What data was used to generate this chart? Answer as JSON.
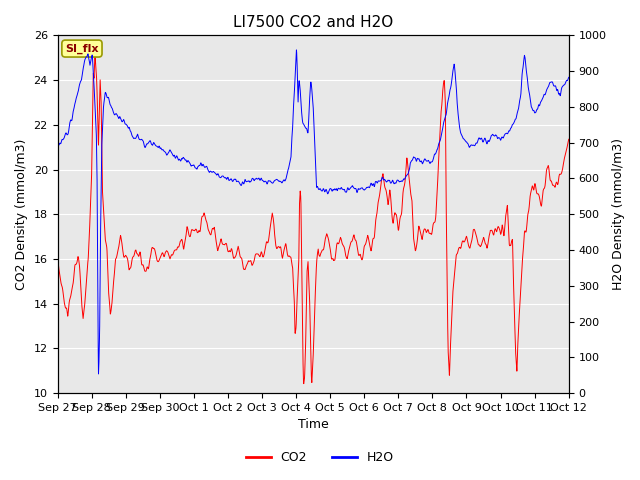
{
  "title": "LI7500 CO2 and H2O",
  "xlabel": "Time",
  "ylabel_left": "CO2 Density (mmol/m3)",
  "ylabel_right": "H2O Density (mmol/m3)",
  "co2_color": "#FF0000",
  "h2o_color": "#0000FF",
  "co2_label": "CO2",
  "h2o_label": "H2O",
  "ylim_left": [
    10,
    26
  ],
  "ylim_right": [
    0,
    1000
  ],
  "yticks_left": [
    10,
    12,
    14,
    16,
    18,
    20,
    22,
    24,
    26
  ],
  "yticks_right": [
    0,
    100,
    200,
    300,
    400,
    500,
    600,
    700,
    800,
    900,
    1000
  ],
  "background_color": "#E8E8E8",
  "figure_bg": "#FFFFFF",
  "annotation_text": "SI_flx",
  "annotation_bg": "#FFFF99",
  "annotation_border": "#999900",
  "grid_color": "#FFFFFF",
  "title_fontsize": 11,
  "axis_label_fontsize": 9,
  "tick_label_fontsize": 8,
  "legend_fontsize": 9,
  "xtick_labels": [
    "Sep 27",
    "Sep 28",
    "Sep 29",
    "Sep 30",
    "Oct 1",
    "Oct 2",
    "Oct 3",
    "Oct 4",
    "Oct 5",
    "Oct 6",
    "Oct 7",
    "Oct 8",
    "Oct 9",
    "Oct 10",
    "Oct 11",
    "Oct 12"
  ],
  "num_points_per_day": 144
}
